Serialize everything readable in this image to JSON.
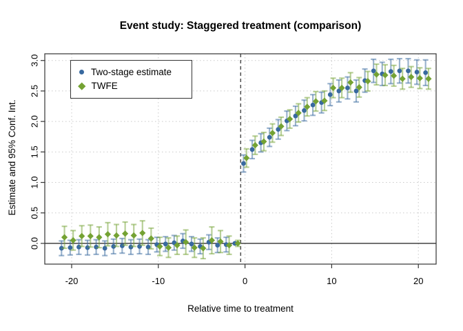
{
  "legend": {
    "items": [
      {
        "label": "Two-stage estimate",
        "marker": "circle",
        "color": "#38699f"
      },
      {
        "label": "TWFE",
        "marker": "diamond",
        "color": "#74a233"
      }
    ]
  },
  "chart_data": {
    "type": "scatter",
    "subtype": "errorbar",
    "title": "Event study: Staggered treatment (comparison)",
    "xlabel": "Relative time to treatment",
    "ylabel": "Estimate and 95% Conf. Int.",
    "xlim": [
      -23.1,
      22.05
    ],
    "ylim": [
      -0.34,
      3.11
    ],
    "xticks": [
      -20,
      -10,
      0,
      10,
      20
    ],
    "yticks": [
      0.0,
      0.5,
      1.0,
      1.5,
      2.0,
      2.5,
      3.0
    ],
    "ytick_labels": [
      "0.0",
      "0.5",
      "1.0",
      "1.5",
      "2.0",
      "2.5",
      "3.0"
    ],
    "grid": true,
    "hline_y": 0,
    "vline_x": -0.5,
    "legend_position": "top-left",
    "x": [
      -21,
      -20,
      -19,
      -18,
      -17,
      -16,
      -15,
      -14,
      -13,
      -12,
      -11,
      -10,
      -9,
      -8,
      -7,
      -6,
      -5,
      -4,
      -3,
      -2,
      -1,
      0,
      1,
      2,
      3,
      4,
      5,
      6,
      7,
      8,
      9,
      10,
      11,
      12,
      13,
      14,
      15,
      16,
      17,
      18,
      19,
      20,
      21
    ],
    "series": [
      {
        "name": "Two-stage estimate",
        "marker": "circle",
        "color": "#38699f",
        "offset": -0.17,
        "values": [
          -0.08,
          -0.07,
          -0.06,
          -0.07,
          -0.06,
          -0.08,
          -0.05,
          -0.04,
          -0.06,
          -0.05,
          -0.06,
          -0.02,
          -0.01,
          0.01,
          0.04,
          -0.01,
          -0.05,
          0.02,
          -0.03,
          -0.02,
          0,
          1.31,
          1.54,
          1.65,
          1.74,
          1.87,
          2.01,
          2.09,
          2.18,
          2.27,
          2.31,
          2.44,
          2.5,
          2.55,
          2.5,
          2.67,
          2.83,
          2.78,
          2.82,
          2.83,
          2.83,
          2.81,
          2.8
        ],
        "ci_half": [
          0.12,
          0.12,
          0.12,
          0.12,
          0.12,
          0.12,
          0.12,
          0.12,
          0.12,
          0.12,
          0.12,
          0.12,
          0.12,
          0.12,
          0.12,
          0.12,
          0.12,
          0.12,
          0.12,
          0.12,
          0,
          0.14,
          0.15,
          0.15,
          0.15,
          0.16,
          0.16,
          0.16,
          0.17,
          0.17,
          0.17,
          0.18,
          0.18,
          0.18,
          0.18,
          0.19,
          0.19,
          0.19,
          0.2,
          0.2,
          0.2,
          0.2,
          0.21
        ]
      },
      {
        "name": "TWFE",
        "marker": "diamond",
        "color": "#74a233",
        "offset": 0.17,
        "values": [
          0.1,
          0.05,
          0.12,
          0.12,
          0.1,
          0.15,
          0.13,
          0.16,
          0.13,
          0.17,
          0.08,
          -0.05,
          -0.07,
          -0.03,
          0.02,
          -0.07,
          -0.08,
          0.05,
          0.03,
          -0.03,
          0,
          1.4,
          1.61,
          1.67,
          1.81,
          1.92,
          2.04,
          2.14,
          2.24,
          2.33,
          2.34,
          2.55,
          2.55,
          2.64,
          2.56,
          2.66,
          2.77,
          2.76,
          2.75,
          2.7,
          2.73,
          2.71,
          2.7
        ],
        "ci_half": [
          0.18,
          0.16,
          0.17,
          0.18,
          0.17,
          0.19,
          0.18,
          0.19,
          0.18,
          0.2,
          0.17,
          0.15,
          0.16,
          0.15,
          0.2,
          0.16,
          0.17,
          0.22,
          0.18,
          0.15,
          0.05,
          0.15,
          0.15,
          0.15,
          0.15,
          0.15,
          0.15,
          0.15,
          0.15,
          0.16,
          0.16,
          0.16,
          0.16,
          0.16,
          0.16,
          0.16,
          0.17,
          0.17,
          0.17,
          0.17,
          0.17,
          0.17,
          0.17
        ]
      }
    ]
  }
}
